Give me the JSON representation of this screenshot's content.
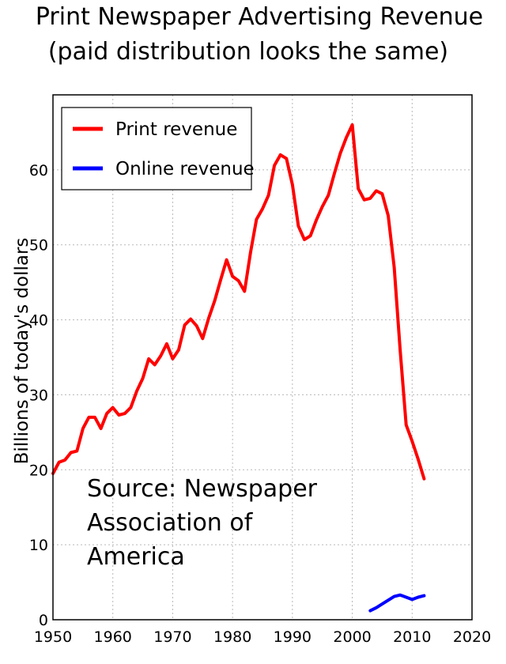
{
  "title_line1": "Print Newspaper Advertising Revenue",
  "title_line2": "(paid distribution looks the same)",
  "annotation_lines": [
    "Source: Newspaper",
    "Association of",
    "America"
  ],
  "chart_data": {
    "type": "line",
    "title": "Print Newspaper Advertising Revenue",
    "subtitle": "(paid distribution looks the same)",
    "xlabel": "",
    "ylabel": "Billions of today's dollars",
    "xlim": [
      1950,
      2020
    ],
    "ylim": [
      0,
      70
    ],
    "xticks": [
      1950,
      1960,
      1970,
      1980,
      1990,
      2000,
      2010,
      2020
    ],
    "yticks": [
      0,
      10,
      20,
      30,
      40,
      50,
      60
    ],
    "grid": true,
    "legend_position": "top-left",
    "annotation": "Source: Newspaper Association of America",
    "series": [
      {
        "name": "Print revenue",
        "color": "#ff0000",
        "x": [
          1950,
          1951,
          1952,
          1953,
          1954,
          1955,
          1956,
          1957,
          1958,
          1959,
          1960,
          1961,
          1962,
          1963,
          1964,
          1965,
          1966,
          1967,
          1968,
          1969,
          1970,
          1971,
          1972,
          1973,
          1974,
          1975,
          1976,
          1977,
          1978,
          1979,
          1980,
          1981,
          1982,
          1983,
          1984,
          1985,
          1986,
          1987,
          1988,
          1989,
          1990,
          1991,
          1992,
          1993,
          1994,
          1995,
          1996,
          1997,
          1998,
          1999,
          2000,
          2001,
          2002,
          2003,
          2004,
          2005,
          2006,
          2007,
          2008,
          2009,
          2010,
          2011,
          2012
        ],
        "values": [
          19.5,
          21,
          21.3,
          22.3,
          22.5,
          25.5,
          27,
          27,
          25.5,
          27.5,
          28.3,
          27.3,
          27.5,
          28.3,
          30.5,
          32.2,
          34.8,
          34,
          35.2,
          36.8,
          34.8,
          36,
          39.3,
          40.1,
          39.2,
          37.5,
          40.2,
          42.5,
          45.3,
          48,
          45.8,
          45.2,
          43.8,
          49,
          53.4,
          54.8,
          56.6,
          60.6,
          62,
          61.5,
          58,
          52.5,
          50.7,
          51.2,
          53.3,
          55.1,
          56.6,
          59.5,
          62.2,
          64.3,
          66,
          57.5,
          56,
          56.2,
          57.2,
          56.8,
          53.9,
          47,
          36,
          26,
          23.8,
          21.4,
          18.8
        ]
      },
      {
        "name": "Online revenue",
        "color": "#0000ff",
        "x": [
          2003,
          2004,
          2005,
          2006,
          2007,
          2008,
          2009,
          2010,
          2011,
          2012
        ],
        "values": [
          1.2,
          1.6,
          2.1,
          2.6,
          3.1,
          3.3,
          3.0,
          2.7,
          3.0,
          3.2
        ]
      }
    ]
  }
}
